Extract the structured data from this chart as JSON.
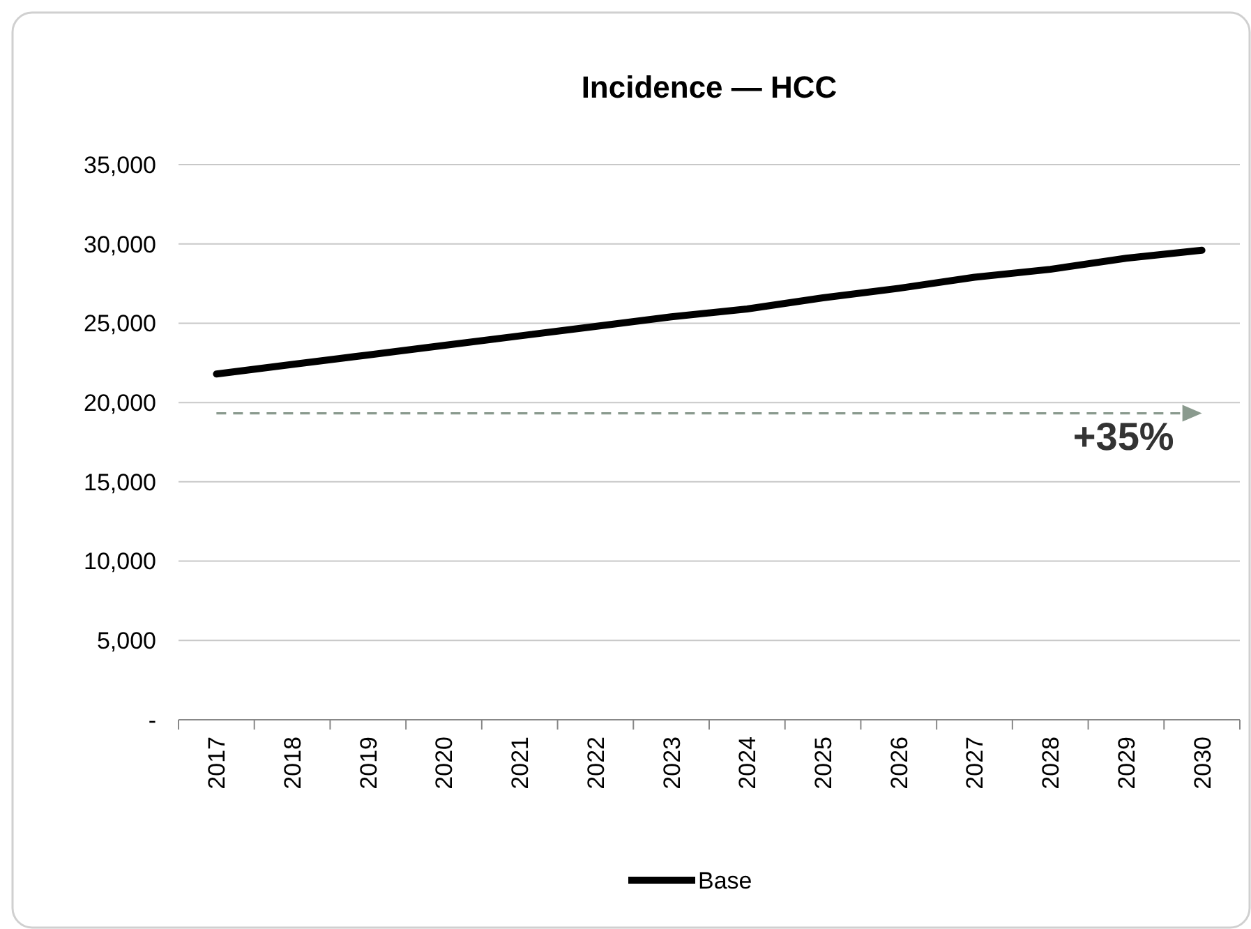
{
  "chart_data": {
    "type": "line",
    "title": "Incidence — HCC",
    "categories": [
      "2017",
      "2018",
      "2019",
      "2020",
      "2021",
      "2022",
      "2023",
      "2024",
      "2025",
      "2026",
      "2027",
      "2028",
      "2029",
      "2030"
    ],
    "series": [
      {
        "name": "Base",
        "color": "#000000",
        "values": [
          21800,
          22400,
          23000,
          23600,
          24200,
          24800,
          25400,
          25900,
          26600,
          27200,
          27900,
          28400,
          29100,
          29600
        ]
      }
    ],
    "ylim": [
      0,
      35000
    ],
    "yticks": [
      {
        "value": 0,
        "label": "-"
      },
      {
        "value": 5000,
        "label": "5,000"
      },
      {
        "value": 10000,
        "label": "10,000"
      },
      {
        "value": 15000,
        "label": "15,000"
      },
      {
        "value": 20000,
        "label": "20,000"
      },
      {
        "value": 25000,
        "label": "25,000"
      },
      {
        "value": 30000,
        "label": "30,000"
      },
      {
        "value": 35000,
        "label": "35,000"
      }
    ],
    "grid": "y",
    "legend": "bottom",
    "marker": "none",
    "line_style": "solid",
    "annotations": [
      "+35%"
    ]
  }
}
